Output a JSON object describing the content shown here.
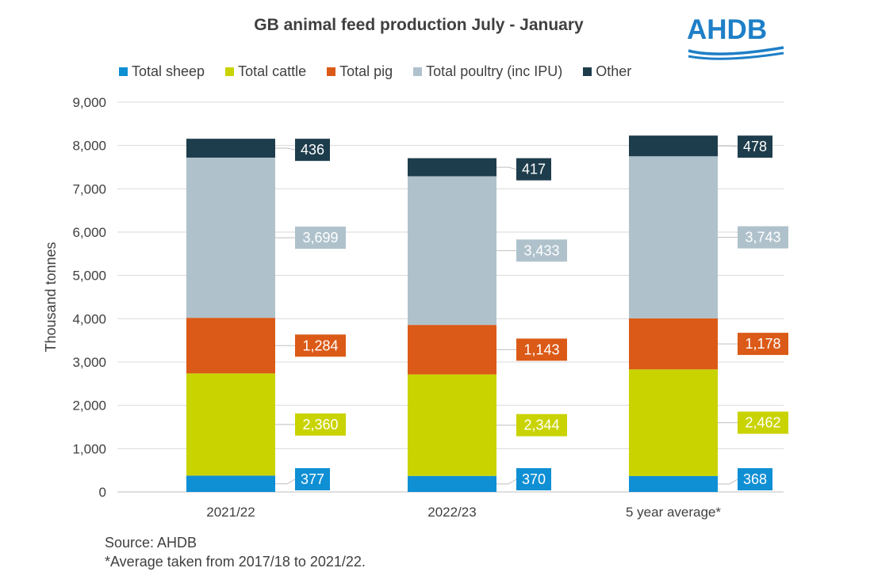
{
  "chart_data": {
    "type": "bar",
    "stacked": true,
    "title": "GB animal feed production July - January",
    "ylabel": "Thousand tonnes",
    "xlabel": "",
    "ylim": [
      0,
      9000
    ],
    "yticks": [
      0,
      1000,
      2000,
      3000,
      4000,
      5000,
      6000,
      7000,
      8000,
      9000
    ],
    "ytick_labels": [
      "0",
      "1,000",
      "2,000",
      "3,000",
      "4,000",
      "5,000",
      "6,000",
      "7,000",
      "8,000",
      "9,000"
    ],
    "categories": [
      "2021/22",
      "2022/23",
      "5 year average*"
    ],
    "legend_position": "top",
    "series": [
      {
        "name": "Total sheep",
        "color": "#0f8fd4",
        "values": [
          377,
          370,
          368
        ],
        "labels": [
          "377",
          "370",
          "368"
        ]
      },
      {
        "name": "Total cattle",
        "color": "#c9d300",
        "values": [
          2360,
          2344,
          2462
        ],
        "labels": [
          "2,360",
          "2,344",
          "2,462"
        ]
      },
      {
        "name": "Total pig",
        "color": "#db5a17",
        "values": [
          1284,
          1143,
          1178
        ],
        "labels": [
          "1,284",
          "1,143",
          "1,178"
        ]
      },
      {
        "name": "Total poultry (inc IPU)",
        "color": "#afc2cc",
        "values": [
          3699,
          3433,
          3743
        ],
        "labels": [
          "3,699",
          "3,433",
          "3,743"
        ]
      },
      {
        "name": "Other",
        "color": "#1e3d4c",
        "values": [
          436,
          417,
          478
        ],
        "labels": [
          "436",
          "417",
          "478"
        ]
      }
    ]
  },
  "logo": {
    "text": "AHDB",
    "color": "#1e7fc7"
  },
  "footer": {
    "source": "Source: AHDB",
    "note": "*Average taken from 2017/18 to 2021/22."
  }
}
